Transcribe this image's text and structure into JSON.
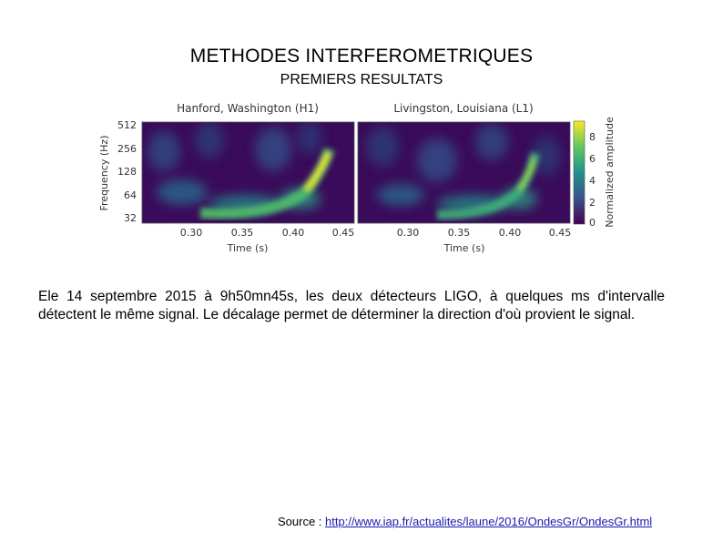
{
  "slide": {
    "title": "METHODES INTERFEROMETRIQUES",
    "subtitle": "PREMIERS RESULTATS",
    "body_text": "Ele 14 septembre 2015 à 9h50mn45s, les deux détecteurs LIGO, à quelques ms d'intervalle détectent le même signal. Le décalage permet de déterminer la direction d'où provient le signal.",
    "source_label": "Source : ",
    "source_link": "http://www.iap.fr/actualites/laune/2016/OndesGr/OndesGr.html"
  },
  "figure": {
    "panels": [
      {
        "title": "Hanford, Washington (H1)"
      },
      {
        "title": "Livingston, Louisiana (L1)"
      }
    ],
    "ylabel": "Frequency (Hz)",
    "xlabel": "Time (s)",
    "yticks": [
      "512",
      "256",
      "128",
      "64",
      "32"
    ],
    "xticks": [
      "0.30",
      "0.35",
      "0.40",
      "0.45"
    ],
    "colorbar": {
      "label": "Normalized amplitude",
      "ticks": [
        "8",
        "6",
        "4",
        "2",
        "0"
      ],
      "colors": [
        "#fde725",
        "#5ec962",
        "#21918c",
        "#3b528b",
        "#440154"
      ]
    }
  }
}
